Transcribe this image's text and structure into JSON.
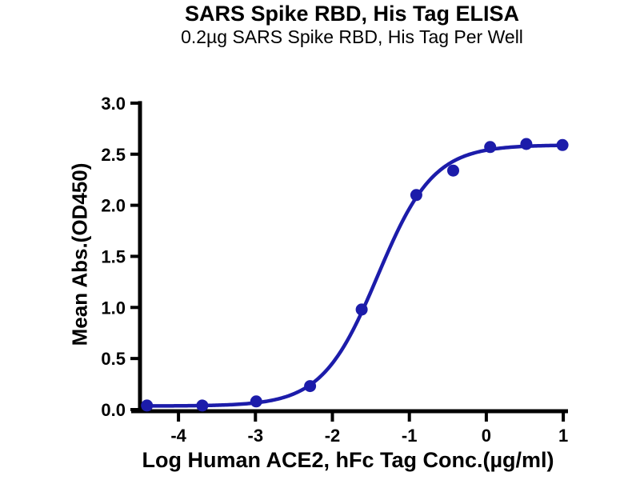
{
  "chart_data": {
    "type": "scatter",
    "title": "SARS Spike RBD, His Tag ELISA",
    "subtitle": "0.2µg SARS Spike RBD, His Tag Per Well",
    "xlabel": "Log Human ACE2, hFc Tag Conc.(µg/ml)",
    "ylabel": "Mean Abs.(OD450)",
    "x": [
      -4.41,
      -3.69,
      -2.99,
      -2.29,
      -1.62,
      -0.91,
      -0.43,
      0.05,
      0.52,
      0.99
    ],
    "y": [
      0.04,
      0.04,
      0.08,
      0.23,
      0.98,
      2.1,
      2.34,
      2.57,
      2.6,
      2.59
    ],
    "x_ticks": [
      -4,
      -3,
      -2,
      -1,
      0,
      1
    ],
    "y_ticks": [
      0.0,
      0.5,
      1.0,
      1.5,
      2.0,
      2.5,
      3.0
    ],
    "xlim": [
      -4.5,
      1.05
    ],
    "ylim": [
      0.0,
      3.0
    ],
    "grid": false,
    "legend": null,
    "curve_fit": {
      "model": "4PL sigmoid",
      "bottom": 0.035,
      "top": 2.59,
      "logEC50": -1.41,
      "hill": 1.2
    },
    "colors": {
      "series": "#1c1caa",
      "axis": "#000000",
      "background": "#ffffff"
    }
  }
}
